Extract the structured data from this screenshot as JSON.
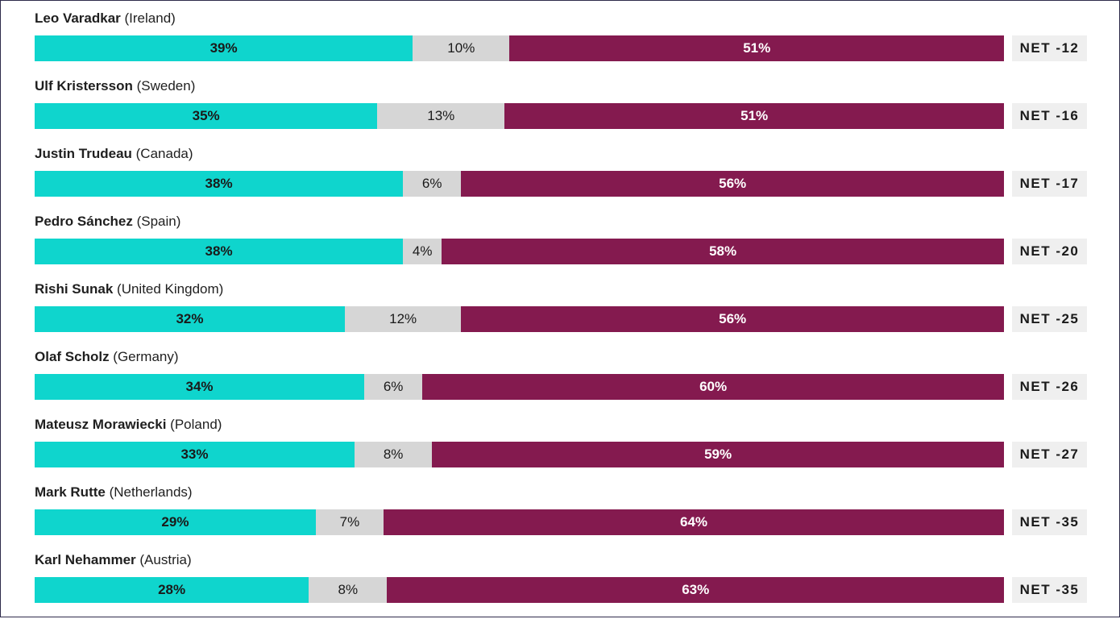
{
  "chart_data": {
    "type": "bar",
    "stacked": true,
    "orientation": "horizontal",
    "colors": {
      "approve": "#0fd5cd",
      "neutral": "#d6d6d6",
      "disapprove": "#841a4f"
    },
    "rows": [
      {
        "name": "Leo Varadkar",
        "country": "(Ireland)",
        "approve": 39,
        "neutral": 10,
        "disapprove": 51,
        "approve_label": "39%",
        "neutral_label": "10%",
        "disapprove_label": "51%",
        "net": "NET -12"
      },
      {
        "name": "Ulf Kristersson",
        "country": "(Sweden)",
        "approve": 35,
        "neutral": 13,
        "disapprove": 51,
        "approve_label": "35%",
        "neutral_label": "13%",
        "disapprove_label": "51%",
        "net": "NET -16"
      },
      {
        "name": "Justin Trudeau",
        "country": "(Canada)",
        "approve": 38,
        "neutral": 6,
        "disapprove": 56,
        "approve_label": "38%",
        "neutral_label": "6%",
        "disapprove_label": "56%",
        "net": "NET -17"
      },
      {
        "name": "Pedro Sánchez",
        "country": "(Spain)",
        "approve": 38,
        "neutral": 4,
        "disapprove": 58,
        "approve_label": "38%",
        "neutral_label": "4%",
        "disapprove_label": "58%",
        "net": "NET -20"
      },
      {
        "name": "Rishi Sunak",
        "country": "(United Kingdom)",
        "approve": 32,
        "neutral": 12,
        "disapprove": 56,
        "approve_label": "32%",
        "neutral_label": "12%",
        "disapprove_label": "56%",
        "net": "NET -25"
      },
      {
        "name": "Olaf Scholz",
        "country": "(Germany)",
        "approve": 34,
        "neutral": 6,
        "disapprove": 60,
        "approve_label": "34%",
        "neutral_label": "6%",
        "disapprove_label": "60%",
        "net": "NET -26"
      },
      {
        "name": "Mateusz Morawiecki",
        "country": "(Poland)",
        "approve": 33,
        "neutral": 8,
        "disapprove": 59,
        "approve_label": "33%",
        "neutral_label": "8%",
        "disapprove_label": "59%",
        "net": "NET -27"
      },
      {
        "name": "Mark Rutte",
        "country": "(Netherlands)",
        "approve": 29,
        "neutral": 7,
        "disapprove": 64,
        "approve_label": "29%",
        "neutral_label": "7%",
        "disapprove_label": "64%",
        "net": "NET -35"
      },
      {
        "name": "Karl Nehammer",
        "country": "(Austria)",
        "approve": 28,
        "neutral": 8,
        "disapprove": 63,
        "approve_label": "28%",
        "neutral_label": "8%",
        "disapprove_label": "63%",
        "net": "NET -35"
      }
    ]
  }
}
